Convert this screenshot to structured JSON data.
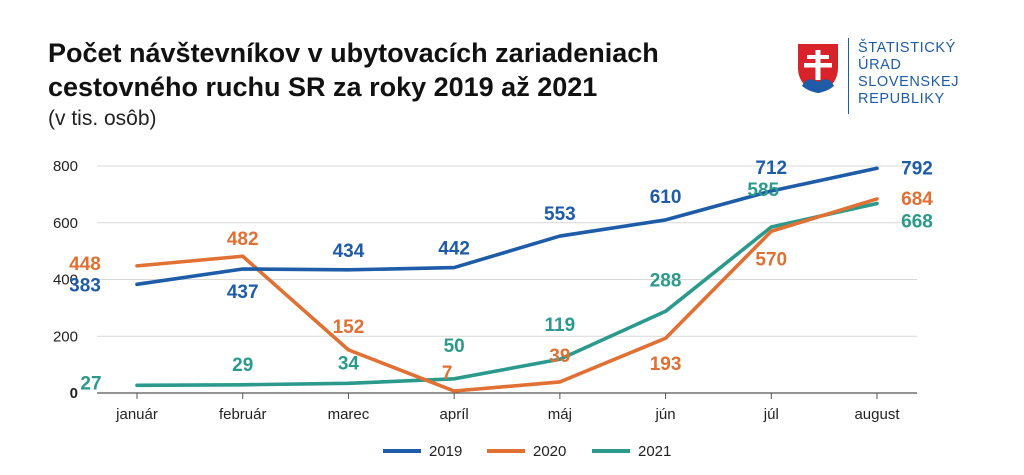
{
  "header": {
    "title": "Počet návštevníkov v ubytovacích zariadeniach cestovného ruchu SR za roky 2019 až 2021",
    "subtitle": "(v tis. osôb)"
  },
  "logo": {
    "lines": [
      "ŠTATISTICKÝ",
      "ÚRAD",
      "SLOVENSKEJ",
      "REPUBLIKY"
    ],
    "icon": "slovak-coat-of-arms-icon"
  },
  "chart_data": {
    "type": "line",
    "title": "Počet návštevníkov v ubytovacích zariadeniach cestovného ruchu SR za roky 2019 až 2021",
    "subtitle": "(v tis. osôb)",
    "xlabel": "",
    "ylabel": "",
    "categories": [
      "január",
      "február",
      "marec",
      "apríl",
      "máj",
      "jún",
      "júl",
      "august"
    ],
    "ylim": [
      0,
      800
    ],
    "yticks": [
      0,
      200,
      400,
      600,
      800
    ],
    "grid": true,
    "legend_position": "bottom",
    "series": [
      {
        "name": "2019",
        "color": "#1f5ca8",
        "values": [
          383,
          437,
          434,
          442,
          553,
          610,
          712,
          792
        ]
      },
      {
        "name": "2020",
        "color": "#e07033",
        "values": [
          448,
          482,
          152,
          7,
          39,
          193,
          570,
          684
        ]
      },
      {
        "name": "2021",
        "color": "#2b9a8c",
        "values": [
          27,
          29,
          34,
          50,
          119,
          288,
          585,
          668
        ]
      }
    ]
  }
}
